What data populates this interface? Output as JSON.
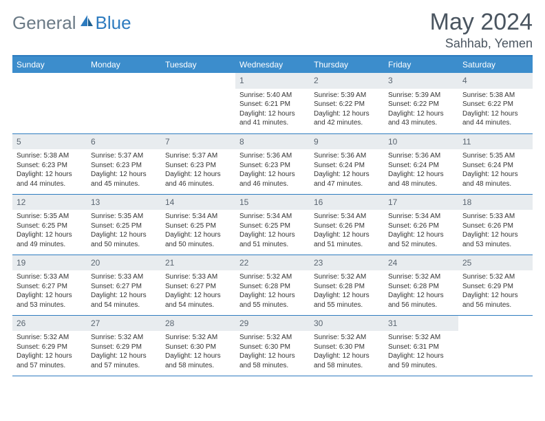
{
  "brand": {
    "part1": "General",
    "part2": "Blue"
  },
  "title": "May 2024",
  "location": "Sahhab, Yemen",
  "columns": [
    "Sunday",
    "Monday",
    "Tuesday",
    "Wednesday",
    "Thursday",
    "Friday",
    "Saturday"
  ],
  "colors": {
    "header_bg": "#3c8dcc",
    "header_text": "#ffffff",
    "border": "#2d7bbf",
    "daynum_bg": "#e8ecef",
    "title_color": "#4a5560",
    "logo_gray": "#6b7a86",
    "logo_blue": "#2d7bbf"
  },
  "weeks": [
    [
      {
        "empty": true
      },
      {
        "empty": true
      },
      {
        "empty": true
      },
      {
        "num": "1",
        "sunrise": "5:40 AM",
        "sunset": "6:21 PM",
        "daylight": "12 hours and 41 minutes."
      },
      {
        "num": "2",
        "sunrise": "5:39 AM",
        "sunset": "6:22 PM",
        "daylight": "12 hours and 42 minutes."
      },
      {
        "num": "3",
        "sunrise": "5:39 AM",
        "sunset": "6:22 PM",
        "daylight": "12 hours and 43 minutes."
      },
      {
        "num": "4",
        "sunrise": "5:38 AM",
        "sunset": "6:22 PM",
        "daylight": "12 hours and 44 minutes."
      }
    ],
    [
      {
        "num": "5",
        "sunrise": "5:38 AM",
        "sunset": "6:23 PM",
        "daylight": "12 hours and 44 minutes."
      },
      {
        "num": "6",
        "sunrise": "5:37 AM",
        "sunset": "6:23 PM",
        "daylight": "12 hours and 45 minutes."
      },
      {
        "num": "7",
        "sunrise": "5:37 AM",
        "sunset": "6:23 PM",
        "daylight": "12 hours and 46 minutes."
      },
      {
        "num": "8",
        "sunrise": "5:36 AM",
        "sunset": "6:23 PM",
        "daylight": "12 hours and 46 minutes."
      },
      {
        "num": "9",
        "sunrise": "5:36 AM",
        "sunset": "6:24 PM",
        "daylight": "12 hours and 47 minutes."
      },
      {
        "num": "10",
        "sunrise": "5:36 AM",
        "sunset": "6:24 PM",
        "daylight": "12 hours and 48 minutes."
      },
      {
        "num": "11",
        "sunrise": "5:35 AM",
        "sunset": "6:24 PM",
        "daylight": "12 hours and 48 minutes."
      }
    ],
    [
      {
        "num": "12",
        "sunrise": "5:35 AM",
        "sunset": "6:25 PM",
        "daylight": "12 hours and 49 minutes."
      },
      {
        "num": "13",
        "sunrise": "5:35 AM",
        "sunset": "6:25 PM",
        "daylight": "12 hours and 50 minutes."
      },
      {
        "num": "14",
        "sunrise": "5:34 AM",
        "sunset": "6:25 PM",
        "daylight": "12 hours and 50 minutes."
      },
      {
        "num": "15",
        "sunrise": "5:34 AM",
        "sunset": "6:25 PM",
        "daylight": "12 hours and 51 minutes."
      },
      {
        "num": "16",
        "sunrise": "5:34 AM",
        "sunset": "6:26 PM",
        "daylight": "12 hours and 51 minutes."
      },
      {
        "num": "17",
        "sunrise": "5:34 AM",
        "sunset": "6:26 PM",
        "daylight": "12 hours and 52 minutes."
      },
      {
        "num": "18",
        "sunrise": "5:33 AM",
        "sunset": "6:26 PM",
        "daylight": "12 hours and 53 minutes."
      }
    ],
    [
      {
        "num": "19",
        "sunrise": "5:33 AM",
        "sunset": "6:27 PM",
        "daylight": "12 hours and 53 minutes."
      },
      {
        "num": "20",
        "sunrise": "5:33 AM",
        "sunset": "6:27 PM",
        "daylight": "12 hours and 54 minutes."
      },
      {
        "num": "21",
        "sunrise": "5:33 AM",
        "sunset": "6:27 PM",
        "daylight": "12 hours and 54 minutes."
      },
      {
        "num": "22",
        "sunrise": "5:32 AM",
        "sunset": "6:28 PM",
        "daylight": "12 hours and 55 minutes."
      },
      {
        "num": "23",
        "sunrise": "5:32 AM",
        "sunset": "6:28 PM",
        "daylight": "12 hours and 55 minutes."
      },
      {
        "num": "24",
        "sunrise": "5:32 AM",
        "sunset": "6:28 PM",
        "daylight": "12 hours and 56 minutes."
      },
      {
        "num": "25",
        "sunrise": "5:32 AM",
        "sunset": "6:29 PM",
        "daylight": "12 hours and 56 minutes."
      }
    ],
    [
      {
        "num": "26",
        "sunrise": "5:32 AM",
        "sunset": "6:29 PM",
        "daylight": "12 hours and 57 minutes."
      },
      {
        "num": "27",
        "sunrise": "5:32 AM",
        "sunset": "6:29 PM",
        "daylight": "12 hours and 57 minutes."
      },
      {
        "num": "28",
        "sunrise": "5:32 AM",
        "sunset": "6:30 PM",
        "daylight": "12 hours and 58 minutes."
      },
      {
        "num": "29",
        "sunrise": "5:32 AM",
        "sunset": "6:30 PM",
        "daylight": "12 hours and 58 minutes."
      },
      {
        "num": "30",
        "sunrise": "5:32 AM",
        "sunset": "6:30 PM",
        "daylight": "12 hours and 58 minutes."
      },
      {
        "num": "31",
        "sunrise": "5:32 AM",
        "sunset": "6:31 PM",
        "daylight": "12 hours and 59 minutes."
      },
      {
        "empty": true
      }
    ]
  ],
  "labels": {
    "sunrise": "Sunrise: ",
    "sunset": "Sunset: ",
    "daylight": "Daylight: "
  }
}
